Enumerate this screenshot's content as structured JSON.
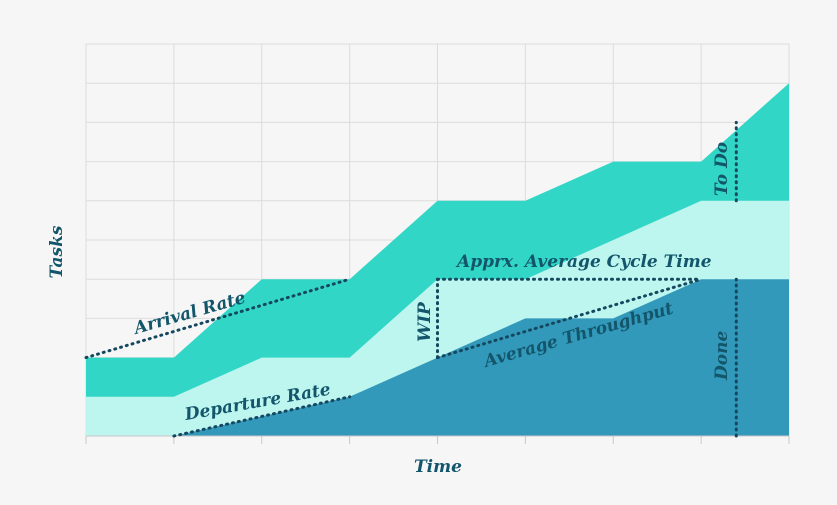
{
  "chart_data": {
    "type": "area",
    "subtype": "cumulative-flow-diagram",
    "title": "",
    "xlabel": "Time",
    "ylabel": "Tasks",
    "x": [
      0,
      1,
      2,
      3,
      4,
      5,
      6,
      7,
      8
    ],
    "xlim": [
      0,
      8
    ],
    "ylim": [
      0,
      10
    ],
    "grid": true,
    "series": [
      {
        "name": "Done",
        "color": "#3399bb",
        "values": [
          0,
          0,
          0.5,
          1,
          2,
          3,
          3,
          4,
          4
        ]
      },
      {
        "name": "",
        "color": "#bdf5ef",
        "values": [
          1,
          1,
          2,
          2,
          4,
          4,
          5,
          6,
          6
        ]
      },
      {
        "name": "To Do",
        "color": "#32d6c6",
        "values": [
          2,
          2,
          4,
          4,
          6,
          6,
          7,
          7,
          9
        ]
      }
    ],
    "annotations": {
      "arrival_rate": "Arrival Rate",
      "departure_rate": "Departure Rate",
      "avg_cycle_time": "Apprx. Average Cycle Time",
      "wip": "WIP",
      "avg_throughput": "Average Throughput",
      "todo": "To Do",
      "done": "Done"
    },
    "lines": {
      "arrival": [
        [
          0,
          2
        ],
        [
          3,
          4
        ]
      ],
      "departure": [
        [
          1,
          0
        ],
        [
          3,
          1
        ]
      ],
      "cycle_time": [
        [
          4,
          4
        ],
        [
          7,
          4
        ]
      ],
      "wip": [
        [
          4,
          2
        ],
        [
          4,
          4
        ]
      ],
      "throughput": [
        [
          4,
          2
        ],
        [
          7,
          4
        ]
      ],
      "todo_marker": [
        [
          7.4,
          6
        ],
        [
          7.4,
          8
        ]
      ],
      "done_marker": [
        [
          7.4,
          0
        ],
        [
          7.4,
          4
        ]
      ]
    }
  }
}
